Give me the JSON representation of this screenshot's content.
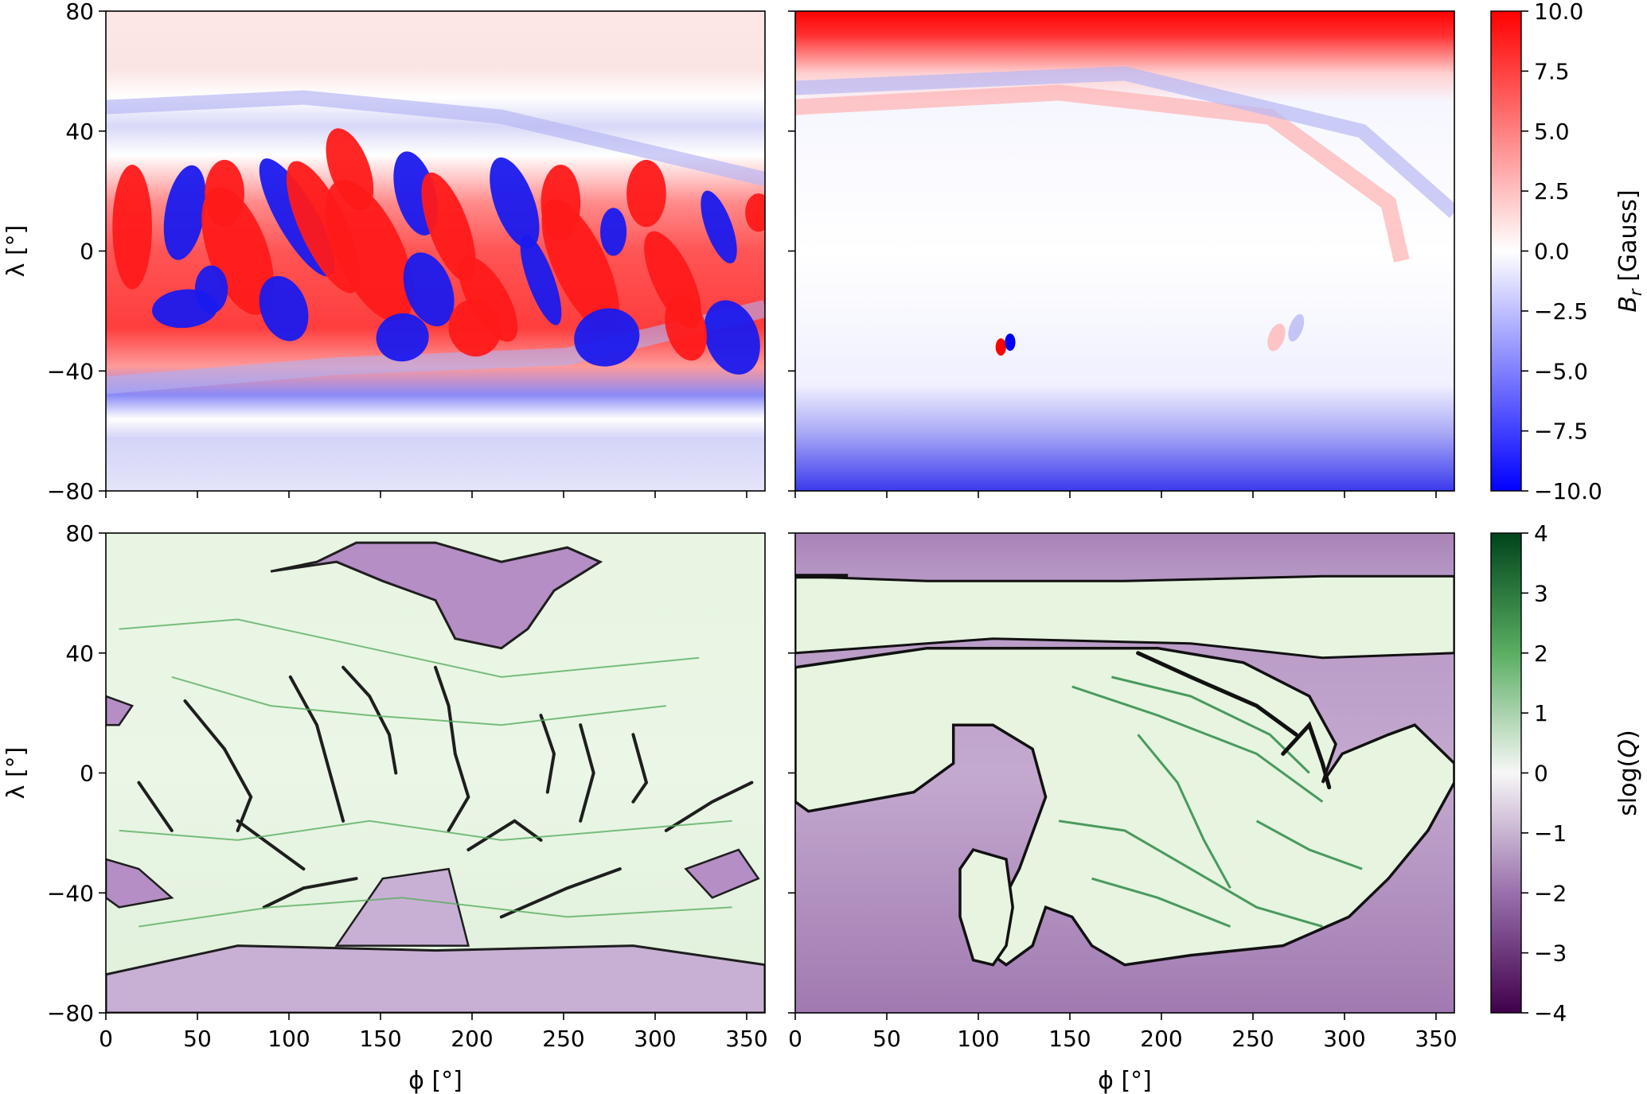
{
  "chart_data": [
    {
      "type": "heatmap",
      "panel": "top-left",
      "quantity": "B_r",
      "xlim": [
        0,
        360
      ],
      "ylim": [
        -80,
        80
      ],
      "yticks": [
        "80",
        "40",
        "0",
        "−40",
        "−80"
      ],
      "ylabel": "λ [°]",
      "colormap": "bwr",
      "clim": [
        -10,
        10
      ]
    },
    {
      "type": "heatmap",
      "panel": "top-right",
      "quantity": "B_r",
      "xlim": [
        0,
        360
      ],
      "ylim": [
        -80,
        80
      ],
      "colormap": "bwr",
      "clim": [
        -10,
        10
      ]
    },
    {
      "type": "heatmap",
      "panel": "bottom-left",
      "quantity": "slog(Q)",
      "xlim": [
        0,
        360
      ],
      "ylim": [
        -80,
        80
      ],
      "xticks": [
        "0",
        "50",
        "100",
        "150",
        "200",
        "250",
        "300",
        "350"
      ],
      "yticks": [
        "80",
        "40",
        "0",
        "−40",
        "−80"
      ],
      "xlabel": "ϕ [°]",
      "ylabel": "λ [°]",
      "colormap": "PRGn",
      "clim": [
        -4,
        4
      ]
    },
    {
      "type": "heatmap",
      "panel": "bottom-right",
      "quantity": "slog(Q)",
      "xlim": [
        0,
        360
      ],
      "ylim": [
        -80,
        80
      ],
      "xticks": [
        "0",
        "50",
        "100",
        "150",
        "200",
        "250",
        "300",
        "350"
      ],
      "xlabel": "ϕ [°]",
      "colormap": "PRGn",
      "clim": [
        -4,
        4
      ]
    }
  ],
  "colorbars": {
    "top": {
      "label": "B_r [Gauss]",
      "ticks": [
        10.0,
        7.5,
        5.0,
        2.5,
        0.0,
        -2.5,
        -5.0,
        -7.5,
        -10.0
      ],
      "tick_labels": [
        "10.0",
        "7.5",
        "5.0",
        "2.5",
        "0.0",
        "−2.5",
        "−5.0",
        "−7.5",
        "−10.0"
      ],
      "colors": [
        "#0000ff",
        "#ffffff",
        "#ff0000"
      ]
    },
    "bottom": {
      "label": "slog(Q)",
      "ticks": [
        4,
        3,
        2,
        1,
        0,
        -1,
        -2,
        -3,
        -4
      ],
      "tick_labels": [
        "4",
        "3",
        "2",
        "1",
        "0",
        "−1",
        "−2",
        "−3",
        "−4"
      ],
      "colors": [
        "#40004b",
        "#c2a5cf",
        "#f7f7f7",
        "#a6dba0",
        "#00441b"
      ]
    }
  },
  "labels": {
    "ylabel_top": "λ [°]",
    "ylabel_bottom": "λ [°]",
    "xlabel_left": "ϕ [°]",
    "xlabel_right": "ϕ [°]",
    "cbar_top": "B_r [Gauss]",
    "cbar_bottom": "slog(Q)"
  }
}
